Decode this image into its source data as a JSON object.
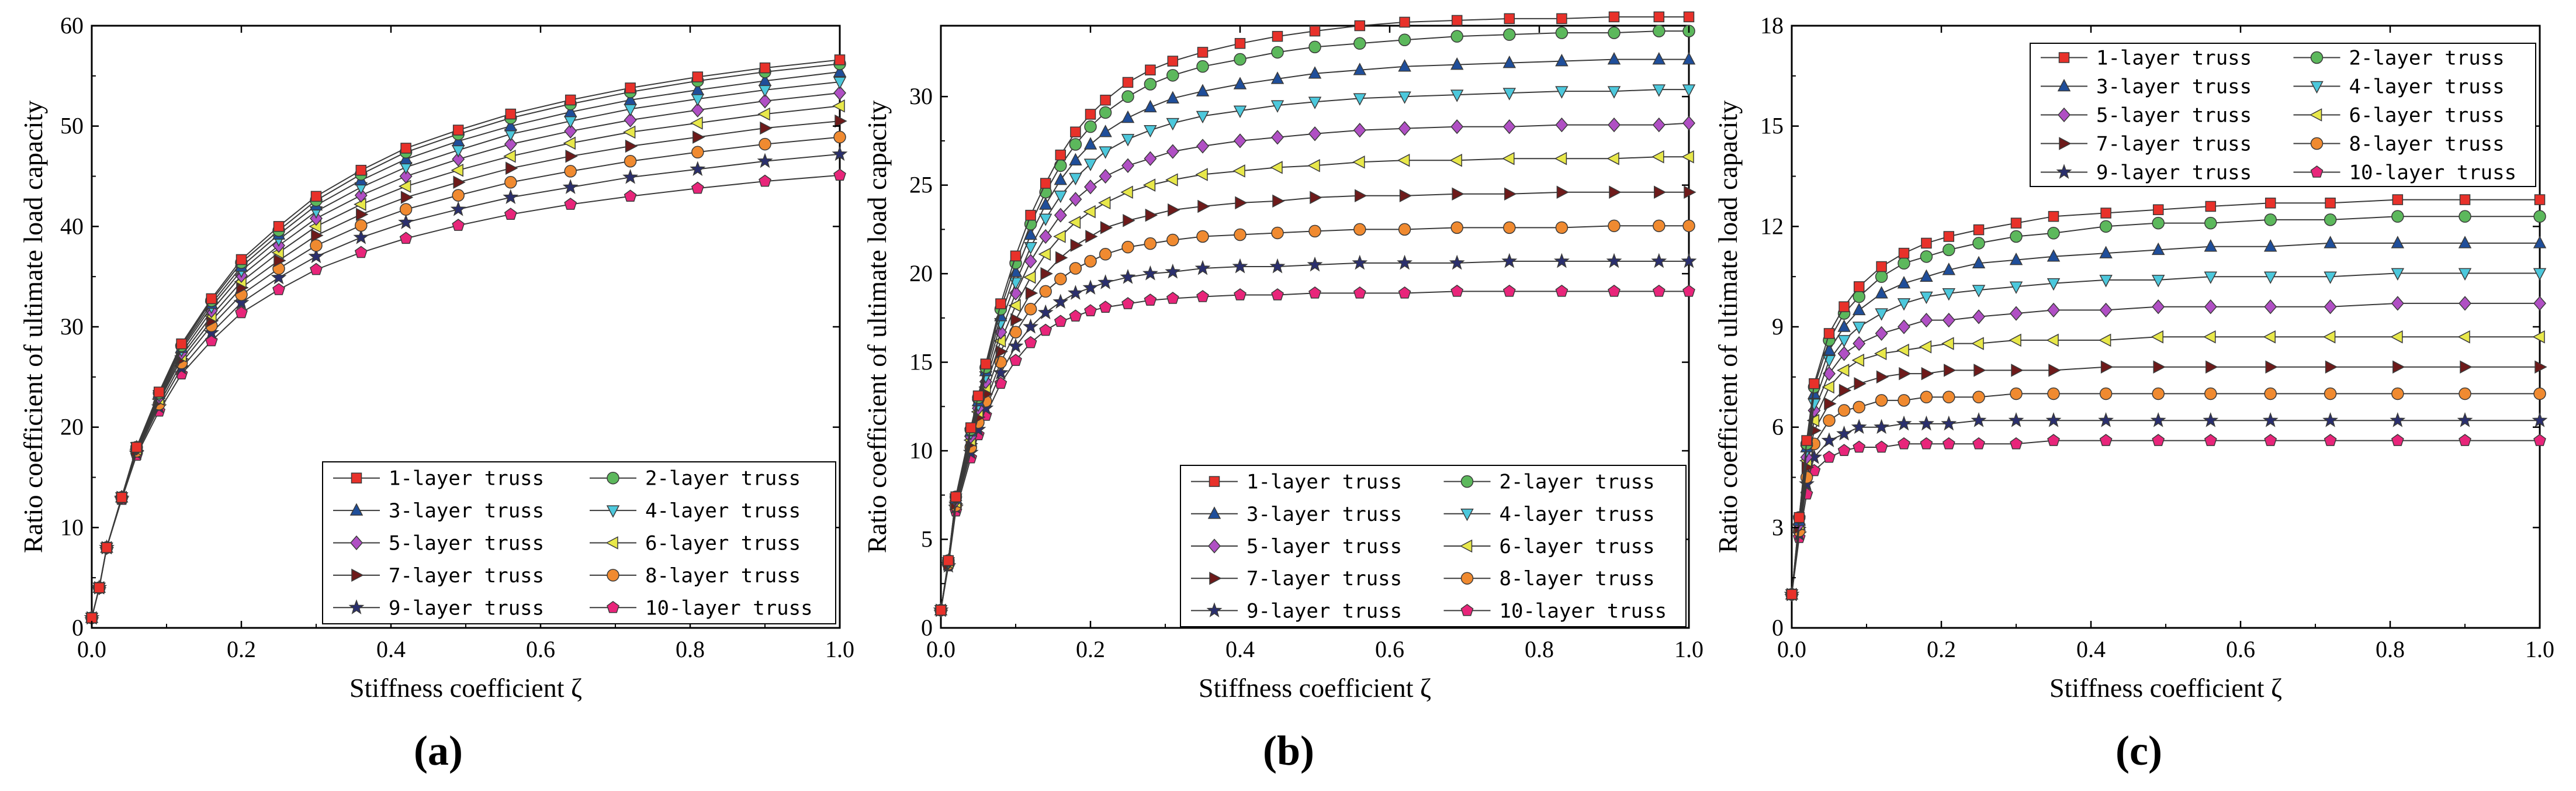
{
  "figure": {
    "panel_labels": [
      "(a)",
      "(b)",
      "(c)"
    ],
    "xlabel": "Stiffness coefficient ζ",
    "ylabel": "Ratio coefficient of ultimate load capacity"
  },
  "series_styles": [
    {
      "name": "1-layer truss",
      "color": "#e8312a",
      "marker": "square"
    },
    {
      "name": "2-layer truss",
      "color": "#5cb85c",
      "marker": "circle"
    },
    {
      "name": "3-layer truss",
      "color": "#1f4e9a",
      "marker": "triangle-up"
    },
    {
      "name": "4-layer truss",
      "color": "#4cc8dc",
      "marker": "triangle-down"
    },
    {
      "name": "5-layer truss",
      "color": "#b04fc4",
      "marker": "diamond"
    },
    {
      "name": "6-layer truss",
      "color": "#e8e84a",
      "marker": "triangle-left"
    },
    {
      "name": "7-layer truss",
      "color": "#6e1a1a",
      "marker": "triangle-right"
    },
    {
      "name": "8-layer truss",
      "color": "#f08a30",
      "marker": "circle"
    },
    {
      "name": "9-layer truss",
      "color": "#2a2f6e",
      "marker": "star"
    },
    {
      "name": "10-layer truss",
      "color": "#e8257a",
      "marker": "pentagon"
    }
  ],
  "chart_data": [
    {
      "type": "line",
      "title": "(a)",
      "xlabel": "Stiffness coefficient ζ",
      "ylabel": "Ratio coefficient of ultimate load capacity",
      "xlim": [
        0.0,
        1.0
      ],
      "ylim": [
        0,
        60
      ],
      "xticks": [
        "0.0",
        "0.2",
        "0.4",
        "0.6",
        "0.8",
        "1.0"
      ],
      "yticks": [
        "0",
        "10",
        "20",
        "30",
        "40",
        "50",
        "60"
      ],
      "legend_position": "lower-right",
      "x": [
        0,
        0.01,
        0.02,
        0.04,
        0.06,
        0.09,
        0.12,
        0.16,
        0.2,
        0.25,
        0.3,
        0.36,
        0.42,
        0.49,
        0.56,
        0.64,
        0.72,
        0.81,
        0.9,
        1.0
      ],
      "series": [
        {
          "name": "1-layer truss",
          "values": [
            1,
            4,
            8,
            13,
            18,
            23.5,
            28.3,
            32.8,
            36.7,
            40.0,
            43.0,
            45.6,
            47.8,
            49.6,
            51.2,
            52.6,
            53.8,
            54.9,
            55.8,
            56.6
          ]
        },
        {
          "name": "2-layer truss",
          "values": [
            1,
            4,
            8,
            13,
            18,
            23.4,
            28.1,
            32.6,
            36.4,
            39.6,
            42.6,
            45.2,
            47.4,
            49.2,
            50.8,
            52.2,
            53.4,
            54.5,
            55.4,
            56.2
          ]
        },
        {
          "name": "3-layer truss",
          "values": [
            1,
            4,
            8,
            13,
            18,
            23.3,
            27.9,
            32.3,
            36.0,
            39.2,
            42.1,
            44.6,
            46.7,
            48.5,
            50.0,
            51.4,
            52.6,
            53.6,
            54.5,
            55.4
          ]
        },
        {
          "name": "4-layer truss",
          "values": [
            1,
            4,
            8,
            13,
            18,
            23.2,
            27.7,
            32.0,
            35.6,
            38.7,
            41.5,
            43.9,
            45.9,
            47.6,
            49.2,
            50.5,
            51.7,
            52.7,
            53.6,
            54.4
          ]
        },
        {
          "name": "5-layer truss",
          "values": [
            1,
            4,
            8,
            13,
            17.9,
            23.0,
            27.4,
            31.6,
            35.1,
            38.1,
            40.8,
            43.1,
            45.0,
            46.7,
            48.2,
            49.5,
            50.6,
            51.6,
            52.5,
            53.3
          ]
        },
        {
          "name": "6-layer truss",
          "values": [
            1,
            4,
            8,
            13,
            17.8,
            22.8,
            27.1,
            31.1,
            34.5,
            37.4,
            40.0,
            42.2,
            44.0,
            45.6,
            47.0,
            48.3,
            49.4,
            50.3,
            51.2,
            52.0
          ]
        },
        {
          "name": "7-layer truss",
          "values": [
            1,
            4,
            8,
            13,
            17.7,
            22.6,
            26.8,
            30.6,
            33.9,
            36.6,
            39.1,
            41.2,
            42.9,
            44.4,
            45.8,
            47.0,
            48.0,
            48.9,
            49.8,
            50.5
          ]
        },
        {
          "name": "8-layer truss",
          "values": [
            1,
            4,
            8,
            13,
            17.6,
            22.3,
            26.4,
            30.1,
            33.2,
            35.8,
            38.1,
            40.1,
            41.7,
            43.1,
            44.4,
            45.5,
            46.5,
            47.4,
            48.2,
            48.9
          ]
        },
        {
          "name": "9-layer truss",
          "values": [
            1,
            4,
            8,
            12.9,
            17.4,
            22.0,
            25.9,
            29.4,
            32.4,
            34.9,
            37.0,
            38.9,
            40.4,
            41.7,
            42.9,
            43.9,
            44.9,
            45.7,
            46.5,
            47.2
          ]
        },
        {
          "name": "10-layer truss",
          "values": [
            1,
            4,
            8,
            12.8,
            17.2,
            21.6,
            25.3,
            28.6,
            31.4,
            33.7,
            35.7,
            37.4,
            38.8,
            40.1,
            41.2,
            42.2,
            43.0,
            43.8,
            44.5,
            45.1
          ]
        }
      ]
    },
    {
      "type": "line",
      "title": "(b)",
      "xlabel": "Stiffness coefficient ζ",
      "ylabel": "Ratio coefficient of ultimate load capacity",
      "xlim": [
        0.0,
        1.0
      ],
      "ylim": [
        0,
        34
      ],
      "xticks": [
        "0.0",
        "0.2",
        "0.4",
        "0.6",
        "0.8",
        "1.0"
      ],
      "yticks": [
        "0",
        "5",
        "10",
        "15",
        "20",
        "25",
        "30"
      ],
      "legend_position": "lower-right",
      "x": [
        0,
        0.01,
        0.02,
        0.04,
        0.05,
        0.06,
        0.08,
        0.1,
        0.12,
        0.14,
        0.16,
        0.18,
        0.2,
        0.22,
        0.25,
        0.28,
        0.31,
        0.35,
        0.4,
        0.45,
        0.5,
        0.56,
        0.62,
        0.69,
        0.76,
        0.83,
        0.9,
        0.96,
        1.0
      ],
      "series": [
        {
          "name": "1-layer truss",
          "values": [
            1,
            3.8,
            7.4,
            11.3,
            13.1,
            14.9,
            18.3,
            21.0,
            23.3,
            25.1,
            26.7,
            28.0,
            29.0,
            29.8,
            30.8,
            31.5,
            32.0,
            32.5,
            33.0,
            33.4,
            33.7,
            34.0,
            34.2,
            34.3,
            34.4,
            34.4,
            34.5,
            34.5,
            34.5
          ]
        },
        {
          "name": "2-layer truss",
          "values": [
            1,
            3.8,
            7.4,
            11.2,
            13.0,
            14.7,
            18.0,
            20.6,
            22.8,
            24.6,
            26.1,
            27.3,
            28.3,
            29.1,
            30.0,
            30.7,
            31.2,
            31.7,
            32.1,
            32.5,
            32.8,
            33.0,
            33.2,
            33.4,
            33.5,
            33.6,
            33.6,
            33.7,
            33.7
          ]
        },
        {
          "name": "3-layer truss",
          "values": [
            1,
            3.8,
            7.3,
            11.1,
            12.8,
            14.5,
            17.6,
            20.1,
            22.2,
            23.9,
            25.3,
            26.4,
            27.3,
            28.0,
            28.8,
            29.4,
            29.9,
            30.3,
            30.7,
            31.0,
            31.3,
            31.5,
            31.7,
            31.8,
            31.9,
            32.0,
            32.1,
            32.1,
            32.1
          ]
        },
        {
          "name": "4-layer truss",
          "values": [
            1,
            3.7,
            7.3,
            11.0,
            12.6,
            14.2,
            17.2,
            19.5,
            21.5,
            23.1,
            24.4,
            25.4,
            26.2,
            26.9,
            27.6,
            28.1,
            28.5,
            28.9,
            29.2,
            29.5,
            29.7,
            29.9,
            30.0,
            30.1,
            30.2,
            30.3,
            30.3,
            30.4,
            30.4
          ]
        },
        {
          "name": "5-layer truss",
          "values": [
            1,
            3.7,
            7.2,
            10.8,
            12.4,
            13.9,
            16.7,
            18.9,
            20.7,
            22.1,
            23.3,
            24.2,
            24.9,
            25.5,
            26.1,
            26.5,
            26.9,
            27.2,
            27.5,
            27.7,
            27.9,
            28.1,
            28.2,
            28.3,
            28.3,
            28.4,
            28.4,
            28.4,
            28.5
          ]
        },
        {
          "name": "6-layer truss",
          "values": [
            1,
            3.7,
            7.1,
            10.6,
            12.2,
            13.6,
            16.2,
            18.2,
            19.8,
            21.1,
            22.1,
            22.9,
            23.5,
            24.0,
            24.6,
            25.0,
            25.3,
            25.6,
            25.8,
            26.0,
            26.1,
            26.3,
            26.4,
            26.4,
            26.5,
            26.5,
            26.5,
            26.6,
            26.6
          ]
        },
        {
          "name": "7-layer truss",
          "values": [
            1,
            3.6,
            7.0,
            10.4,
            11.9,
            13.2,
            15.6,
            17.4,
            18.9,
            20.0,
            20.9,
            21.6,
            22.1,
            22.6,
            23.0,
            23.3,
            23.6,
            23.8,
            24.0,
            24.1,
            24.3,
            24.4,
            24.4,
            24.5,
            24.5,
            24.6,
            24.6,
            24.6,
            24.6
          ]
        },
        {
          "name": "8-layer truss",
          "values": [
            1,
            3.6,
            6.9,
            10.2,
            11.6,
            12.8,
            15.0,
            16.7,
            18.0,
            19.0,
            19.7,
            20.3,
            20.7,
            21.1,
            21.5,
            21.7,
            21.9,
            22.1,
            22.2,
            22.3,
            22.4,
            22.5,
            22.5,
            22.6,
            22.6,
            22.6,
            22.7,
            22.7,
            22.7
          ]
        },
        {
          "name": "9-layer truss",
          "values": [
            1,
            3.5,
            6.8,
            9.9,
            11.2,
            12.4,
            14.4,
            15.9,
            17.0,
            17.8,
            18.4,
            18.9,
            19.2,
            19.5,
            19.8,
            20.0,
            20.1,
            20.3,
            20.4,
            20.4,
            20.5,
            20.6,
            20.6,
            20.6,
            20.7,
            20.7,
            20.7,
            20.7,
            20.7
          ]
        },
        {
          "name": "10-layer truss",
          "values": [
            1,
            3.5,
            6.6,
            9.6,
            10.9,
            12.0,
            13.8,
            15.1,
            16.1,
            16.8,
            17.3,
            17.6,
            17.9,
            18.1,
            18.3,
            18.5,
            18.6,
            18.7,
            18.8,
            18.8,
            18.9,
            18.9,
            18.9,
            19.0,
            19.0,
            19.0,
            19.0,
            19.0,
            19.0
          ]
        }
      ]
    },
    {
      "type": "line",
      "title": "(c)",
      "xlabel": "Stiffness coefficient ζ",
      "ylabel": "Ratio coefficient of ultimate load capacity",
      "xlim": [
        0.0,
        1.0
      ],
      "ylim": [
        0,
        18
      ],
      "xticks": [
        "0.0",
        "0.2",
        "0.4",
        "0.6",
        "0.8",
        "1.0"
      ],
      "yticks": [
        "0",
        "3",
        "6",
        "9",
        "12",
        "15",
        "18"
      ],
      "legend_position": "top-right",
      "x": [
        0,
        0.01,
        0.02,
        0.03,
        0.05,
        0.07,
        0.09,
        0.12,
        0.15,
        0.18,
        0.21,
        0.25,
        0.3,
        0.35,
        0.42,
        0.49,
        0.56,
        0.64,
        0.72,
        0.81,
        0.9,
        1.0
      ],
      "series": [
        {
          "name": "1-layer truss",
          "values": [
            1,
            3.3,
            5.6,
            7.3,
            8.8,
            9.6,
            10.2,
            10.8,
            11.2,
            11.5,
            11.7,
            11.9,
            12.1,
            12.3,
            12.4,
            12.5,
            12.6,
            12.7,
            12.7,
            12.8,
            12.8,
            12.8
          ]
        },
        {
          "name": "2-layer truss",
          "values": [
            1,
            3.3,
            5.5,
            7.2,
            8.6,
            9.4,
            9.9,
            10.5,
            10.9,
            11.1,
            11.3,
            11.5,
            11.7,
            11.8,
            12.0,
            12.1,
            12.1,
            12.2,
            12.2,
            12.3,
            12.3,
            12.3
          ]
        },
        {
          "name": "3-layer truss",
          "values": [
            1,
            3.2,
            5.4,
            7.0,
            8.3,
            9.0,
            9.5,
            10.0,
            10.3,
            10.5,
            10.7,
            10.9,
            11.0,
            11.1,
            11.2,
            11.3,
            11.4,
            11.4,
            11.5,
            11.5,
            11.5,
            11.5
          ]
        },
        {
          "name": "4-layer truss",
          "values": [
            1,
            3.2,
            5.3,
            6.7,
            8.0,
            8.6,
            9.0,
            9.4,
            9.7,
            9.9,
            10.0,
            10.1,
            10.2,
            10.3,
            10.4,
            10.4,
            10.5,
            10.5,
            10.5,
            10.6,
            10.6,
            10.6
          ]
        },
        {
          "name": "5-layer truss",
          "values": [
            1,
            3.1,
            5.1,
            6.5,
            7.6,
            8.2,
            8.5,
            8.8,
            9.0,
            9.2,
            9.2,
            9.3,
            9.4,
            9.5,
            9.5,
            9.6,
            9.6,
            9.6,
            9.6,
            9.7,
            9.7,
            9.7
          ]
        },
        {
          "name": "6-layer truss",
          "values": [
            1,
            3.1,
            5.0,
            6.2,
            7.2,
            7.7,
            8.0,
            8.2,
            8.3,
            8.4,
            8.5,
            8.5,
            8.6,
            8.6,
            8.6,
            8.7,
            8.7,
            8.7,
            8.7,
            8.7,
            8.7,
            8.7
          ]
        },
        {
          "name": "7-layer truss",
          "values": [
            1,
            3.0,
            4.8,
            5.9,
            6.7,
            7.1,
            7.3,
            7.5,
            7.6,
            7.6,
            7.7,
            7.7,
            7.7,
            7.7,
            7.8,
            7.8,
            7.8,
            7.8,
            7.8,
            7.8,
            7.8,
            7.8
          ]
        },
        {
          "name": "8-layer truss",
          "values": [
            1,
            2.9,
            4.5,
            5.5,
            6.2,
            6.5,
            6.6,
            6.8,
            6.8,
            6.9,
            6.9,
            6.9,
            7.0,
            7.0,
            7.0,
            7.0,
            7.0,
            7.0,
            7.0,
            7.0,
            7.0,
            7.0
          ]
        },
        {
          "name": "9-layer truss",
          "values": [
            1,
            2.8,
            4.3,
            5.1,
            5.6,
            5.8,
            6.0,
            6.0,
            6.1,
            6.1,
            6.1,
            6.2,
            6.2,
            6.2,
            6.2,
            6.2,
            6.2,
            6.2,
            6.2,
            6.2,
            6.2,
            6.2
          ]
        },
        {
          "name": "10-layer truss",
          "values": [
            1,
            2.7,
            4.0,
            4.7,
            5.1,
            5.3,
            5.4,
            5.4,
            5.5,
            5.5,
            5.5,
            5.5,
            5.5,
            5.6,
            5.6,
            5.6,
            5.6,
            5.6,
            5.6,
            5.6,
            5.6,
            5.6
          ]
        }
      ]
    }
  ]
}
